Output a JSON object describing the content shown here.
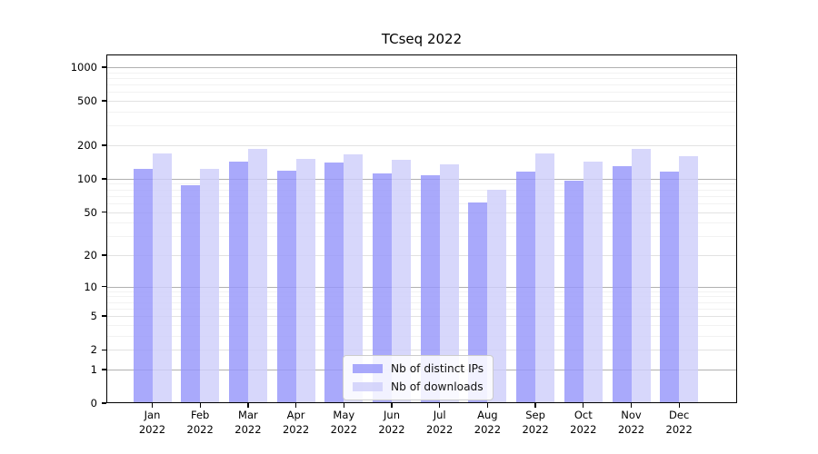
{
  "chart_data": {
    "type": "bar",
    "title": "TCseq 2022",
    "categories": [
      "Jan 2022",
      "Feb 2022",
      "Mar 2022",
      "Apr 2022",
      "May 2022",
      "Jun 2022",
      "Jul 2022",
      "Aug 2022",
      "Sep 2022",
      "Oct 2022",
      "Nov 2022",
      "Dec 2022"
    ],
    "series": [
      {
        "name": "Nb of distinct IPs",
        "color": "#9696fa",
        "values": [
          123,
          88,
          142,
          118,
          140,
          112,
          107,
          61,
          115,
          97,
          131,
          117
        ]
      },
      {
        "name": "Nb of downloads",
        "color": "#cecefa",
        "values": [
          169,
          122,
          185,
          152,
          165,
          147,
          135,
          80,
          170,
          142,
          186,
          160
        ]
      }
    ],
    "xlabel": "",
    "ylabel": "",
    "yscale": "log1p",
    "ylim": [
      0,
      1300
    ],
    "yticks": [
      0,
      1,
      2,
      5,
      10,
      20,
      50,
      100,
      200,
      500,
      1000
    ],
    "grid": "horizontal major + minor log gridlines",
    "legend_position": "inside plot, lower center",
    "colors": {
      "axis": "#000000",
      "gridline_major": "#b0b0b0",
      "gridline_mid": "#e2e2e2",
      "gridline_minor": "#f2f2f2"
    }
  }
}
